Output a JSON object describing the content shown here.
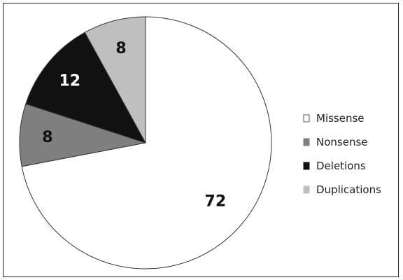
{
  "chart_data": {
    "type": "pie",
    "title": "",
    "legend_position": "right",
    "start_angle_deg": 0,
    "direction": "clockwise",
    "slices": [
      {
        "label": "Missense",
        "value": 72,
        "value_label": "72",
        "color": "#ffffff",
        "label_color": "#111111"
      },
      {
        "label": "Nonsense",
        "value": 8,
        "value_label": "8",
        "color": "#7f7f7f",
        "label_color": "#111111"
      },
      {
        "label": "Deletions",
        "value": 12,
        "value_label": "12",
        "color": "#111111",
        "label_color": "#ffffff"
      },
      {
        "label": "Duplications",
        "value": 8,
        "value_label": "8",
        "color": "#bfbfbf",
        "label_color": "#111111"
      }
    ]
  }
}
